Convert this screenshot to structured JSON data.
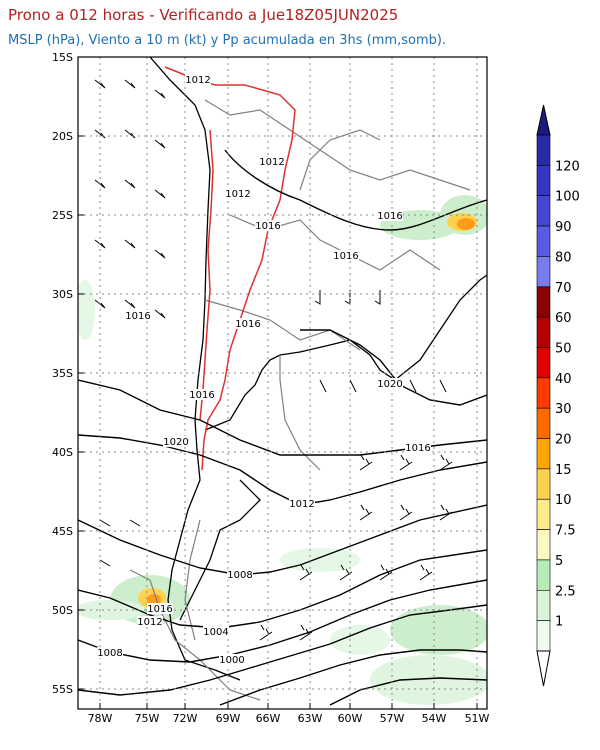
{
  "header": {
    "title": "Prono a 012 horas - Verificando a Jue18Z05JUN2025",
    "subtitle": "MSLP (hPa), Viento a 10 m (kt) y Pp acumulada en 3hs (mm,somb)."
  },
  "axes": {
    "lat_labels": [
      "15S",
      "20S",
      "25S",
      "30S",
      "35S",
      "40S",
      "45S",
      "50S",
      "55S"
    ],
    "lon_labels": [
      "78W",
      "75W",
      "72W",
      "69W",
      "66W",
      "63W",
      "60W",
      "57W",
      "54W",
      "51W"
    ]
  },
  "isobars": [
    {
      "label": "1012"
    },
    {
      "label": "1012"
    },
    {
      "label": "1012"
    },
    {
      "label": "1016"
    },
    {
      "label": "1016"
    },
    {
      "label": "1016"
    },
    {
      "label": "1016"
    },
    {
      "label": "1016"
    },
    {
      "label": "1016"
    },
    {
      "label": "1020"
    },
    {
      "label": "1020"
    },
    {
      "label": "1016"
    },
    {
      "label": "1012"
    },
    {
      "label": "1008"
    },
    {
      "label": "1016"
    },
    {
      "label": "1012"
    },
    {
      "label": "1008"
    },
    {
      "label": "1004"
    },
    {
      "label": "1000"
    }
  ],
  "colorbar": {
    "labels": [
      "120",
      "100",
      "90",
      "80",
      "70",
      "60",
      "50",
      "40",
      "30",
      "20",
      "15",
      "10",
      "7.5",
      "5",
      "2.5",
      "1"
    ],
    "colors": [
      "#2a2aa6",
      "#3535c6",
      "#4646d6",
      "#5a5ae6",
      "#7b7bf0",
      "#8b0000",
      "#b30000",
      "#e00000",
      "#ff3a00",
      "#ff6a00",
      "#ffa500",
      "#ffd24d",
      "#ffea8a",
      "#fff7c0",
      "#b8ebb8",
      "#d9f5d9",
      "#eefcee"
    ],
    "top_arrow_color": "#1a1a80",
    "bottom_arrow_color": "#ffffff"
  },
  "colors": {
    "coast": "#000000",
    "borders": "#808080",
    "terrain": "#e03030",
    "precip_light": "#cdeecd",
    "precip_heavy": "#ff9a1a"
  }
}
